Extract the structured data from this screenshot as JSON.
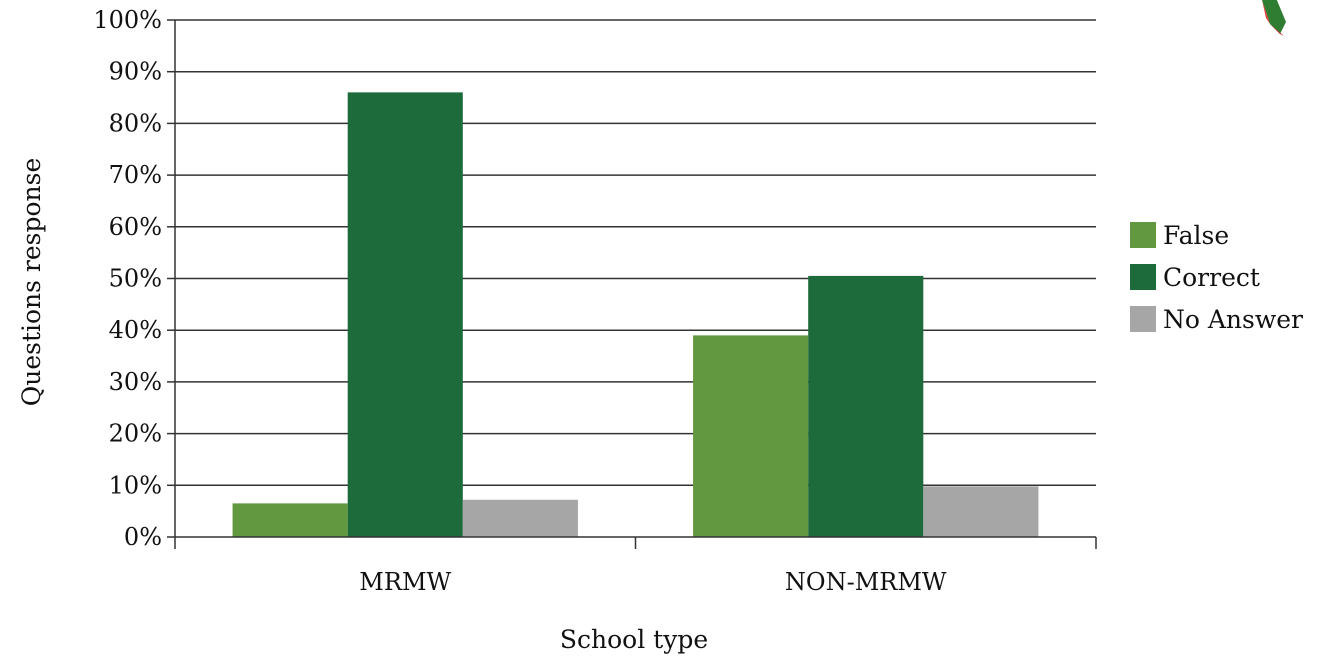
{
  "chart_data": {
    "type": "bar",
    "categories": [
      "MRMW",
      "NON-MRMW"
    ],
    "series": [
      {
        "name": "False",
        "values": [
          6.5,
          39
        ],
        "color": "#629940"
      },
      {
        "name": "Correct",
        "values": [
          86,
          50.5
        ],
        "color": "#1d6b3b"
      },
      {
        "name": "No Answer",
        "values": [
          7.2,
          9.8
        ],
        "color": "#a6a6a6"
      }
    ],
    "title": "",
    "xlabel": "School type",
    "ylabel": "Questions response",
    "ylim": [
      0,
      100
    ],
    "yticks": [
      "0%",
      "10%",
      "20%",
      "30%",
      "40%",
      "50%",
      "60%",
      "70%",
      "80%",
      "90%",
      "100%"
    ],
    "grid": true,
    "legend": "right"
  },
  "decorations": {
    "corner_icon": "pencil-icon"
  }
}
